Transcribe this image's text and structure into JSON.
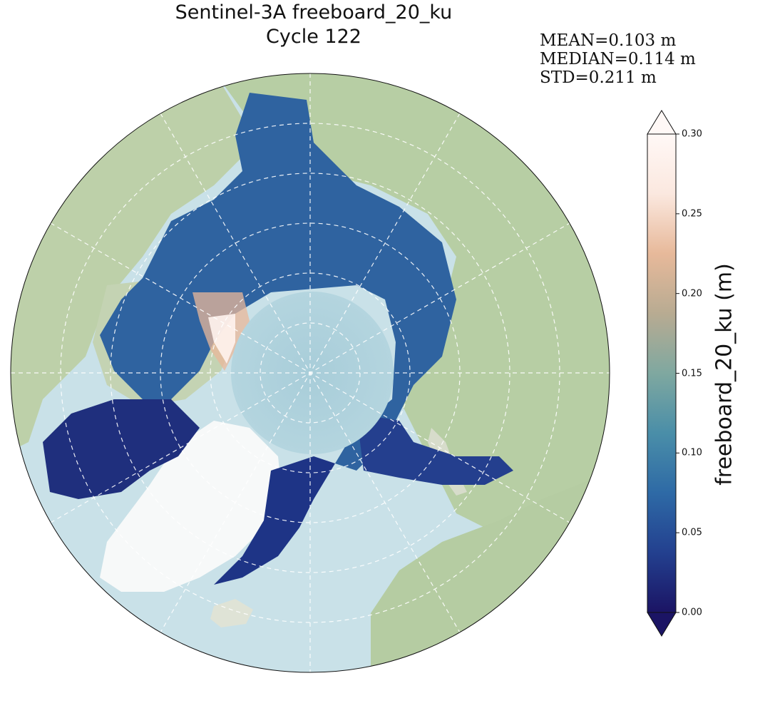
{
  "figure": {
    "title_line1": "Sentinel-3A freeboard_20_ku",
    "title_line2": "Cycle 122"
  },
  "stats": {
    "mean": "MEAN=0.103 m",
    "median": "MEDIAN=0.114 m",
    "std": "STD=0.211 m"
  },
  "colorbar": {
    "label": "freeboard_20_ku (m)",
    "ticks": [
      "0.00",
      "0.05",
      "0.10",
      "0.15",
      "0.20",
      "0.25",
      "0.30"
    ],
    "tick_values": [
      0.0,
      0.05,
      0.1,
      0.15,
      0.2,
      0.25,
      0.3
    ],
    "range": [
      0.0,
      0.3
    ],
    "extend": "both",
    "colormap": [
      "#1b1464",
      "#23408f",
      "#2e6aa6",
      "#4a8ea8",
      "#7fa8a0",
      "#b8ab92",
      "#e7b99a",
      "#fbe8df",
      "#fff8f6"
    ]
  },
  "map": {
    "projection": "north-polar-stereographic",
    "gridlines": "dashed-white",
    "ocean_color": "#c9e1e8",
    "land_color": "#b9cfa6",
    "pole_hole_color": "#a9cfdc"
  }
}
